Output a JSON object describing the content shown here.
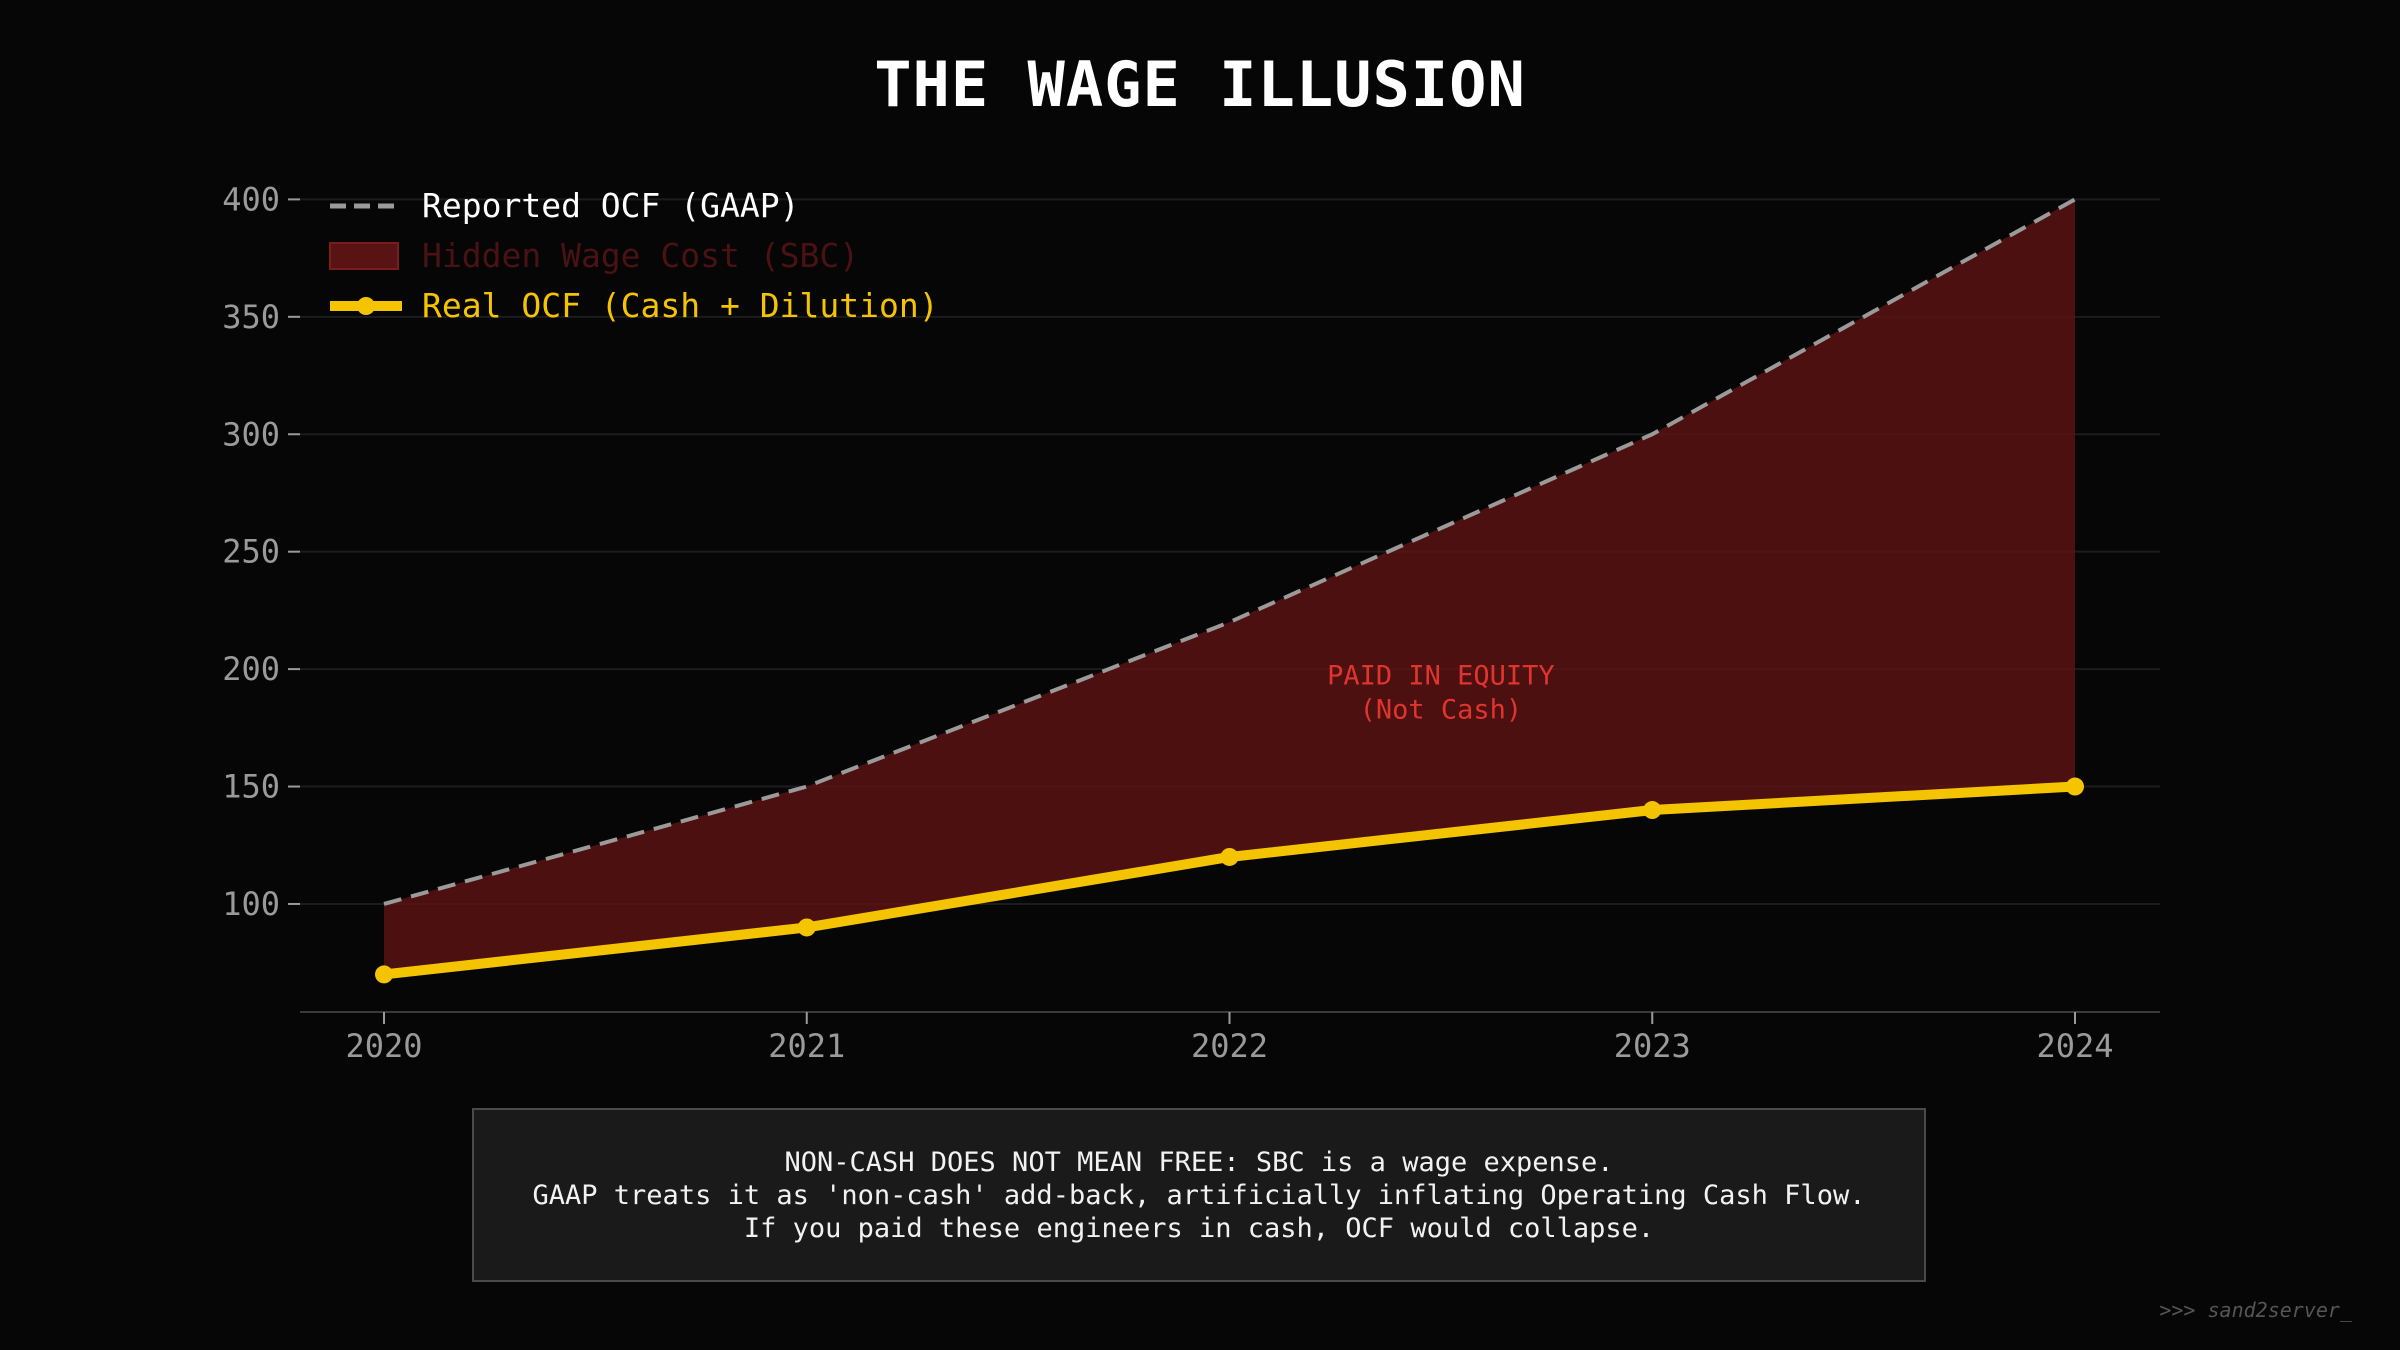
{
  "title": "THE WAGE ILLUSION",
  "colors": {
    "background": "#060606",
    "reported_line": "#9a9a9a",
    "sbc_fill": "#5a1313",
    "real_line": "#f5c400",
    "annotation": "#e0342e",
    "axis_text": "#9a9a9a",
    "grid": "#1c1c1c"
  },
  "chart_data": {
    "type": "line",
    "title": "THE WAGE ILLUSION",
    "xlabel": "",
    "ylabel": "",
    "x": [
      "2020",
      "2021",
      "2022",
      "2023",
      "2024"
    ],
    "ylim": [
      54,
      404
    ],
    "yticks": [
      100,
      150,
      200,
      250,
      300,
      350,
      400
    ],
    "grid": true,
    "legend_placement": "top-left",
    "series": [
      {
        "name": "Reported OCF (GAAP)",
        "style": "dashed",
        "values": [
          100,
          150,
          220,
          300,
          400
        ]
      },
      {
        "name": "Hidden Wage Cost (SBC)",
        "style": "area-between",
        "between": [
          "Reported OCF (GAAP)",
          "Real OCF (Cash + Dilution)"
        ]
      },
      {
        "name": "Real OCF (Cash + Dilution)",
        "style": "solid-markers",
        "values": [
          70,
          90,
          120,
          140,
          150
        ]
      }
    ],
    "annotations": [
      {
        "lines": [
          "PAID IN EQUITY",
          "(Not Cash)"
        ],
        "x": 2022.5,
        "y": 190
      }
    ]
  },
  "note": {
    "lines": [
      "NON-CASH DOES NOT MEAN FREE: SBC is a wage expense.",
      "GAAP treats it as 'non-cash' add-back, artificially inflating Operating Cash Flow.",
      "If you paid these engineers in cash, OCF would collapse."
    ]
  },
  "signature": ">>> sand2server_"
}
